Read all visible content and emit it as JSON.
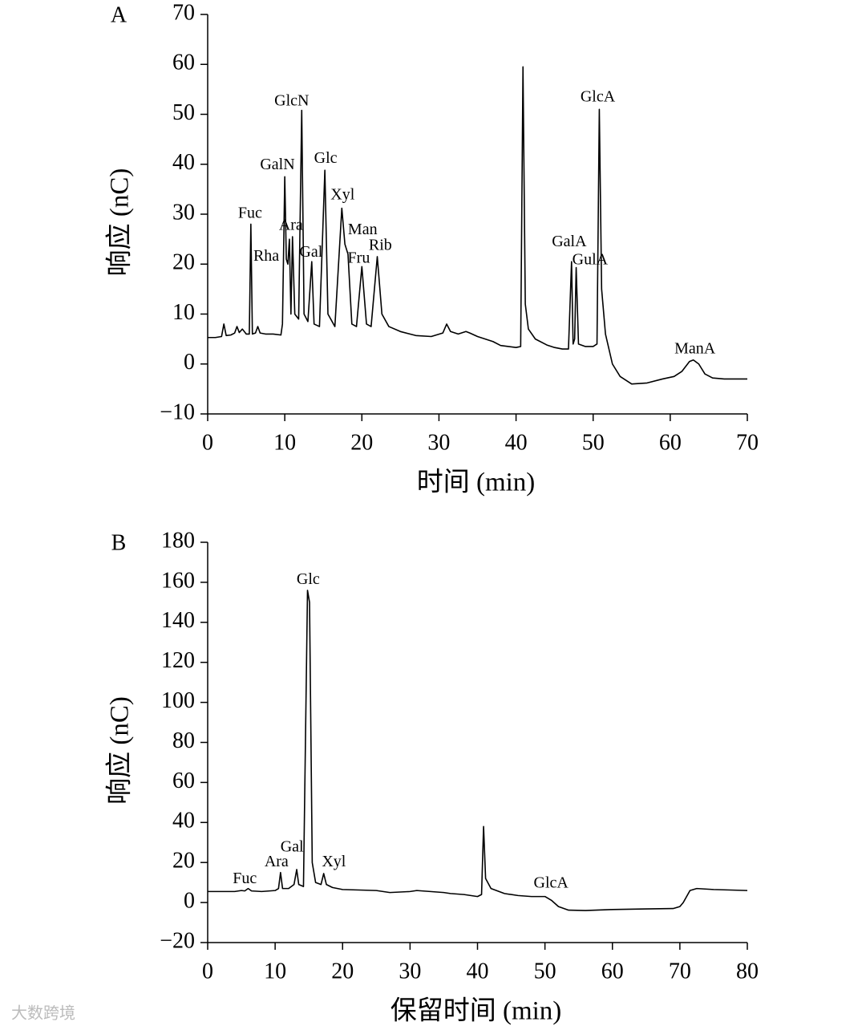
{
  "chart_data": [
    {
      "type": "line",
      "panel": "A",
      "ylabel": "响应 (nC)",
      "xlabel": "时间 (min)",
      "xlim": [
        0,
        70
      ],
      "xticks": [
        0,
        10,
        20,
        30,
        40,
        50,
        60,
        70
      ],
      "ylim": [
        -10,
        70
      ],
      "yticks": [
        {
          "value": -10,
          "label": "−10"
        },
        0,
        10,
        20,
        30,
        40,
        50,
        60,
        70
      ],
      "series": [
        {
          "color": "#000000",
          "x": [
            0,
            1,
            1.8,
            2.1,
            2.4,
            3,
            3.5,
            3.8,
            4.1,
            4.5,
            5,
            5.4,
            5.6,
            5.8,
            6.2,
            6.5,
            6.8,
            7.5,
            8.5,
            9.5,
            9.7,
            10,
            10.2,
            10.4,
            10.6,
            10.8,
            11,
            11.3,
            11.8,
            12.2,
            12.5,
            13,
            13.5,
            13.8,
            14.5,
            15.2,
            15.6,
            16.5,
            17.4,
            17.8,
            18.2,
            18.7,
            19.3,
            20,
            20.6,
            21.2,
            22,
            22.6,
            23.5,
            25,
            27,
            29,
            30.5,
            31,
            31.5,
            32.5,
            33.5,
            34,
            35,
            36,
            37,
            38,
            39,
            40,
            40.6,
            40.9,
            41.2,
            41.6,
            42.5,
            44,
            45,
            46,
            46.8,
            47.2,
            47.4,
            47.6,
            47.8,
            48.1,
            49,
            50,
            50.5,
            50.8,
            51.1,
            51.6,
            52.5,
            53.5,
            55,
            57,
            59,
            60.5,
            61.5,
            62.5,
            63,
            63.7,
            64.5,
            65.5,
            67,
            70
          ],
          "values": [
            5.3,
            5.3,
            5.5,
            8,
            5.7,
            5.8,
            6.2,
            7.5,
            6.3,
            7,
            6,
            6,
            28,
            6,
            6.2,
            7.5,
            6.2,
            6,
            6,
            5.8,
            8,
            37.5,
            21,
            20,
            25,
            10,
            25.5,
            10,
            9,
            50.8,
            10,
            8.5,
            20.5,
            8,
            7.5,
            38.8,
            10,
            7.5,
            31.2,
            24,
            22,
            8,
            7.5,
            19.5,
            8,
            7.5,
            21.5,
            10,
            7.5,
            6.5,
            5.7,
            5.5,
            6.2,
            8,
            6.5,
            6,
            6.5,
            6.2,
            5.5,
            5,
            4.5,
            3.7,
            3.5,
            3.3,
            3.5,
            59.5,
            12,
            7,
            5,
            3.8,
            3.3,
            3,
            3,
            20.5,
            4,
            5,
            19.3,
            4,
            3.5,
            3.5,
            4,
            51,
            15,
            6,
            0,
            -2.5,
            -4,
            -3.8,
            -3,
            -2.5,
            -1.5,
            0.5,
            0.8,
            0,
            -2,
            -2.8,
            -3,
            -3
          ]
        }
      ],
      "annotations": [
        {
          "text": "Fuc",
          "x": 5.5,
          "y": 30
        },
        {
          "text": "Rha",
          "x": 7.6,
          "y": 21.4
        },
        {
          "text": "GalN",
          "x": 9.05,
          "y": 39.7
        },
        {
          "text": "Ara",
          "x": 10.8,
          "y": 27.6
        },
        {
          "text": "GlcN",
          "x": 10.9,
          "y": 52.5
        },
        {
          "text": "Gal",
          "x": 13.4,
          "y": 22.2
        },
        {
          "text": "Glc",
          "x": 15.3,
          "y": 41
        },
        {
          "text": "Xyl",
          "x": 17.5,
          "y": 33.7
        },
        {
          "text": "Man",
          "x": 20.1,
          "y": 26.7
        },
        {
          "text": "Fru",
          "x": 19.6,
          "y": 21
        },
        {
          "text": "Rib",
          "x": 22.4,
          "y": 23.6
        },
        {
          "text": "GalA",
          "x": 46.9,
          "y": 24.3
        },
        {
          "text": "GulA",
          "x": 49.6,
          "y": 20.7
        },
        {
          "text": "GlcA",
          "x": 50.6,
          "y": 53.3
        },
        {
          "text": "ManA",
          "x": 63.2,
          "y": 2.9
        }
      ]
    },
    {
      "type": "line",
      "panel": "B",
      "ylabel": "响应 (nC)",
      "xlabel": "保留时间 (min)",
      "xlim": [
        0,
        80
      ],
      "xticks": [
        0,
        10,
        20,
        30,
        40,
        50,
        60,
        70,
        80
      ],
      "ylim": [
        -20,
        180
      ],
      "yticks": [
        {
          "value": -20,
          "label": "−20"
        },
        0,
        20,
        40,
        60,
        80,
        100,
        120,
        140,
        160,
        180
      ],
      "series": [
        {
          "color": "#000000",
          "x": [
            0,
            4,
            5,
            5.5,
            6,
            6.5,
            8,
            10,
            10.5,
            10.8,
            11.1,
            12,
            12.8,
            13.2,
            13.5,
            14.2,
            14.8,
            15.1,
            15.5,
            16,
            16.8,
            17.2,
            17.6,
            18.5,
            20,
            25,
            27,
            30,
            31,
            33,
            35,
            36,
            38,
            40,
            40.6,
            40.9,
            41.2,
            42,
            44,
            46,
            48,
            50,
            51,
            52,
            53.5,
            56,
            60,
            65,
            69,
            70,
            70.5,
            71.5,
            72.5,
            75,
            80
          ],
          "values": [
            5.5,
            5.5,
            6,
            5.8,
            7,
            5.8,
            5.5,
            6,
            7,
            15,
            7,
            7,
            9,
            16.5,
            9,
            8,
            156,
            150,
            20,
            10,
            9,
            14.5,
            9,
            7.5,
            6.5,
            6,
            5,
            5.5,
            6,
            5.5,
            5,
            4.5,
            4,
            3,
            4,
            38,
            12,
            7,
            4.5,
            3.5,
            3,
            3,
            1,
            -2,
            -3.8,
            -4,
            -3.5,
            -3.2,
            -3,
            -2,
            0,
            6,
            7,
            6.5,
            6
          ]
        }
      ],
      "annotations": [
        {
          "text": "Fuc",
          "x": 5.5,
          "y": 11.6
        },
        {
          "text": "Ara",
          "x": 10.2,
          "y": 20
        },
        {
          "text": "Gal",
          "x": 12.5,
          "y": 27.3
        },
        {
          "text": "Glc",
          "x": 14.9,
          "y": 161
        },
        {
          "text": "Xyl",
          "x": 18.7,
          "y": 20
        },
        {
          "text": "GlcA",
          "x": 50.9,
          "y": 9.2
        }
      ]
    }
  ],
  "watermark": "大数跨境"
}
